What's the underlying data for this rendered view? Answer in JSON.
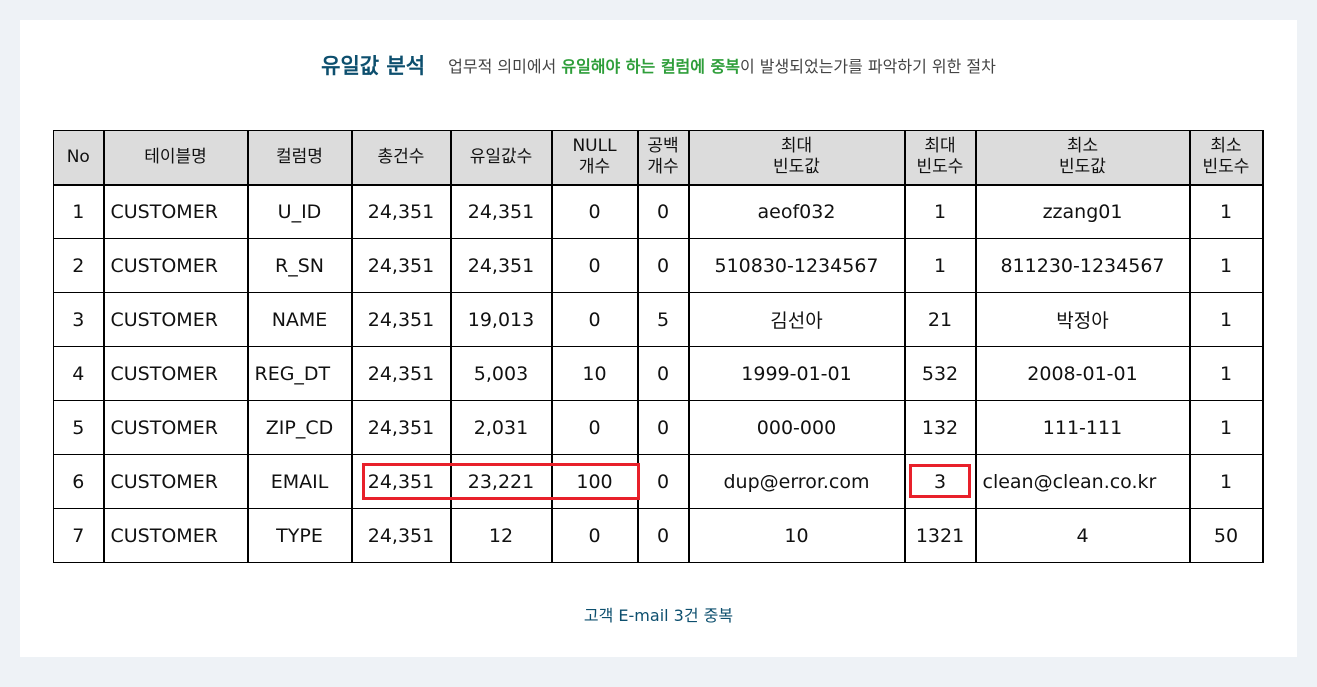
{
  "heading": {
    "title": "유일값 분석",
    "desc_prefix": "업무적 의미에서 ",
    "desc_highlight": "유일해야 하는 컬럼에 중복",
    "desc_suffix": "이 발생되었는가를 파악하기 위한 절차"
  },
  "table": {
    "headers": [
      {
        "l1": "No",
        "l2": ""
      },
      {
        "l1": "테이블명",
        "l2": ""
      },
      {
        "l1": "컬럼명",
        "l2": ""
      },
      {
        "l1": "총건수",
        "l2": ""
      },
      {
        "l1": "유일값수",
        "l2": ""
      },
      {
        "l1": "NULL",
        "l2": "개수"
      },
      {
        "l1": "공백",
        "l2": "개수"
      },
      {
        "l1": "최대",
        "l2": "빈도값"
      },
      {
        "l1": "최대",
        "l2": "빈도수"
      },
      {
        "l1": "최소",
        "l2": "빈도값"
      },
      {
        "l1": "최소",
        "l2": "빈도수"
      }
    ],
    "rows": [
      [
        "1",
        "CUSTOMER",
        "U_ID",
        "24,351",
        "24,351",
        "0",
        "0",
        "aeof032",
        "1",
        "zzang01",
        "1"
      ],
      [
        "2",
        "CUSTOMER",
        "R_SN",
        "24,351",
        "24,351",
        "0",
        "0",
        "510830-1234567",
        "1",
        "811230-1234567",
        "1"
      ],
      [
        "3",
        "CUSTOMER",
        "NAME",
        "24,351",
        "19,013",
        "0",
        "5",
        "김선아",
        "21",
        "박정아",
        "1"
      ],
      [
        "4",
        "CUSTOMER",
        "REG_DT",
        "24,351",
        "5,003",
        "10",
        "0",
        "1999-01-01",
        "532",
        "2008-01-01",
        "1"
      ],
      [
        "5",
        "CUSTOMER",
        "ZIP_CD",
        "24,351",
        "2,031",
        "0",
        "0",
        "000-000",
        "132",
        "111-111",
        "1"
      ],
      [
        "6",
        "CUSTOMER",
        "EMAIL",
        "24,351",
        "23,221",
        "100",
        "0",
        "dup@error.com",
        "3",
        "clean@clean.co.kr",
        "1"
      ],
      [
        "7",
        "CUSTOMER",
        "TYPE",
        "24,351",
        "12",
        "0",
        "0",
        "10",
        "1321",
        "4",
        "50"
      ]
    ],
    "highlight_color": "#e8202a"
  },
  "caption": "고객 E-mail 3건 중복"
}
